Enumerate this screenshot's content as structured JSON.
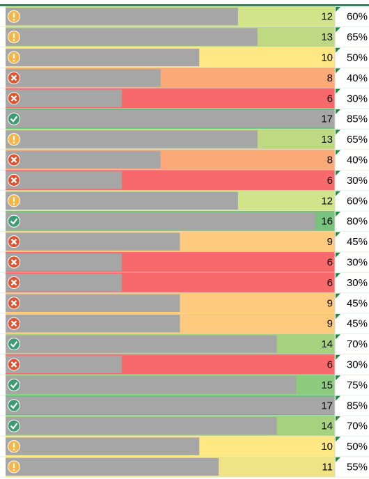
{
  "rows": [
    {
      "value": 12,
      "percent": "60%",
      "color": "#d3e38a",
      "icon": "warning"
    },
    {
      "value": 13,
      "percent": "65%",
      "color": "#bfd982",
      "icon": "warning"
    },
    {
      "value": 10,
      "percent": "50%",
      "color": "#ffe784",
      "icon": "warning"
    },
    {
      "value": 8,
      "percent": "40%",
      "color": "#fbaa77",
      "icon": "error"
    },
    {
      "value": 6,
      "percent": "30%",
      "color": "#f8696b",
      "icon": "error"
    },
    {
      "value": 17,
      "percent": "85%",
      "color": "#63be7b",
      "icon": "ok"
    },
    {
      "value": 13,
      "percent": "65%",
      "color": "#bfd982",
      "icon": "warning"
    },
    {
      "value": 8,
      "percent": "40%",
      "color": "#fbaa77",
      "icon": "error"
    },
    {
      "value": 6,
      "percent": "30%",
      "color": "#f8696b",
      "icon": "error"
    },
    {
      "value": 12,
      "percent": "60%",
      "color": "#d3e38a",
      "icon": "warning"
    },
    {
      "value": 16,
      "percent": "80%",
      "color": "#78c47e",
      "icon": "ok"
    },
    {
      "value": 9,
      "percent": "45%",
      "color": "#fdc97d",
      "icon": "error"
    },
    {
      "value": 6,
      "percent": "30%",
      "color": "#f8696b",
      "icon": "error"
    },
    {
      "value": 6,
      "percent": "30%",
      "color": "#f8696b",
      "icon": "error"
    },
    {
      "value": 9,
      "percent": "45%",
      "color": "#fdc97d",
      "icon": "error"
    },
    {
      "value": 9,
      "percent": "45%",
      "color": "#fdc97d",
      "icon": "error"
    },
    {
      "value": 14,
      "percent": "70%",
      "color": "#a6d27f",
      "icon": "ok"
    },
    {
      "value": 6,
      "percent": "30%",
      "color": "#f8696b",
      "icon": "error"
    },
    {
      "value": 15,
      "percent": "75%",
      "color": "#8dcb7e",
      "icon": "ok"
    },
    {
      "value": 17,
      "percent": "85%",
      "color": "#63be7b",
      "icon": "ok"
    },
    {
      "value": 14,
      "percent": "70%",
      "color": "#a6d27f",
      "icon": "ok"
    },
    {
      "value": 10,
      "percent": "50%",
      "color": "#ffe784",
      "icon": "warning"
    },
    {
      "value": 11,
      "percent": "55%",
      "color": "#eee385",
      "icon": "warning"
    }
  ]
}
